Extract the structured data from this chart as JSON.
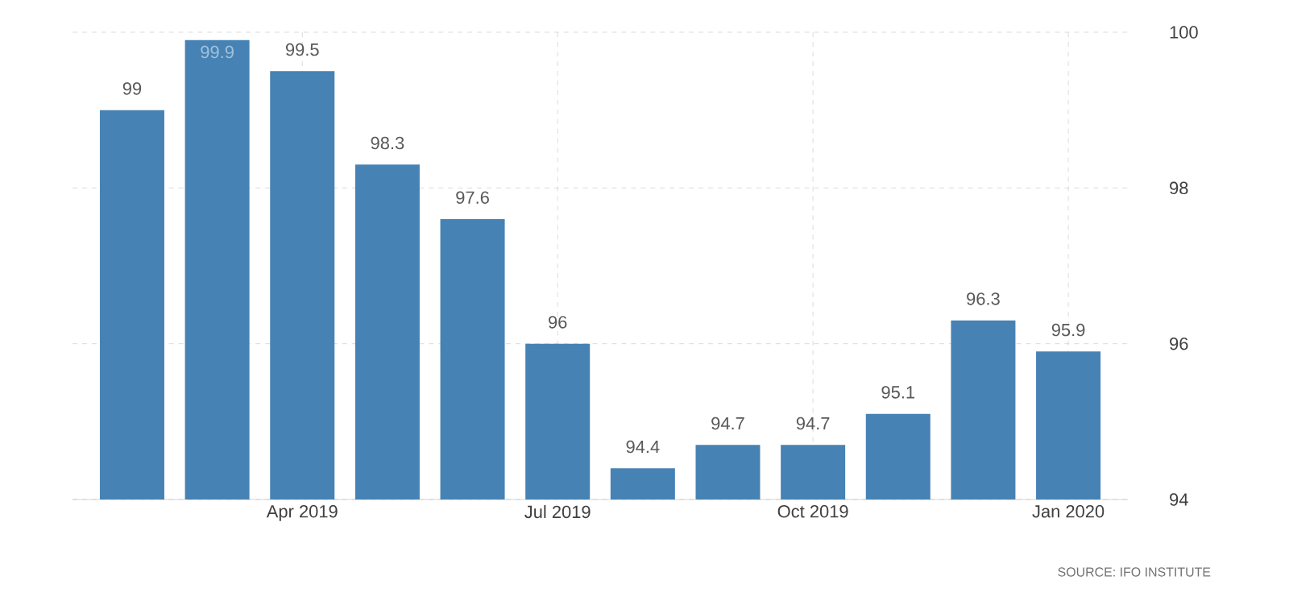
{
  "chart_data": {
    "type": "bar",
    "categories": [
      null,
      null,
      "Apr 2019",
      null,
      null,
      "Jul 2019",
      null,
      null,
      "Oct 2019",
      null,
      null,
      "Jan 2020"
    ],
    "values": [
      99,
      99.9,
      99.5,
      98.3,
      97.6,
      96,
      94.4,
      94.7,
      94.7,
      95.1,
      96.3,
      95.9
    ],
    "color": "#4682b4",
    "ylim": [
      94,
      100
    ],
    "yticks": [
      94,
      96,
      98,
      100
    ],
    "grid": true,
    "data_labels": true,
    "annotations": [
      "SOURCE: IFO INSTITUTE"
    ]
  }
}
